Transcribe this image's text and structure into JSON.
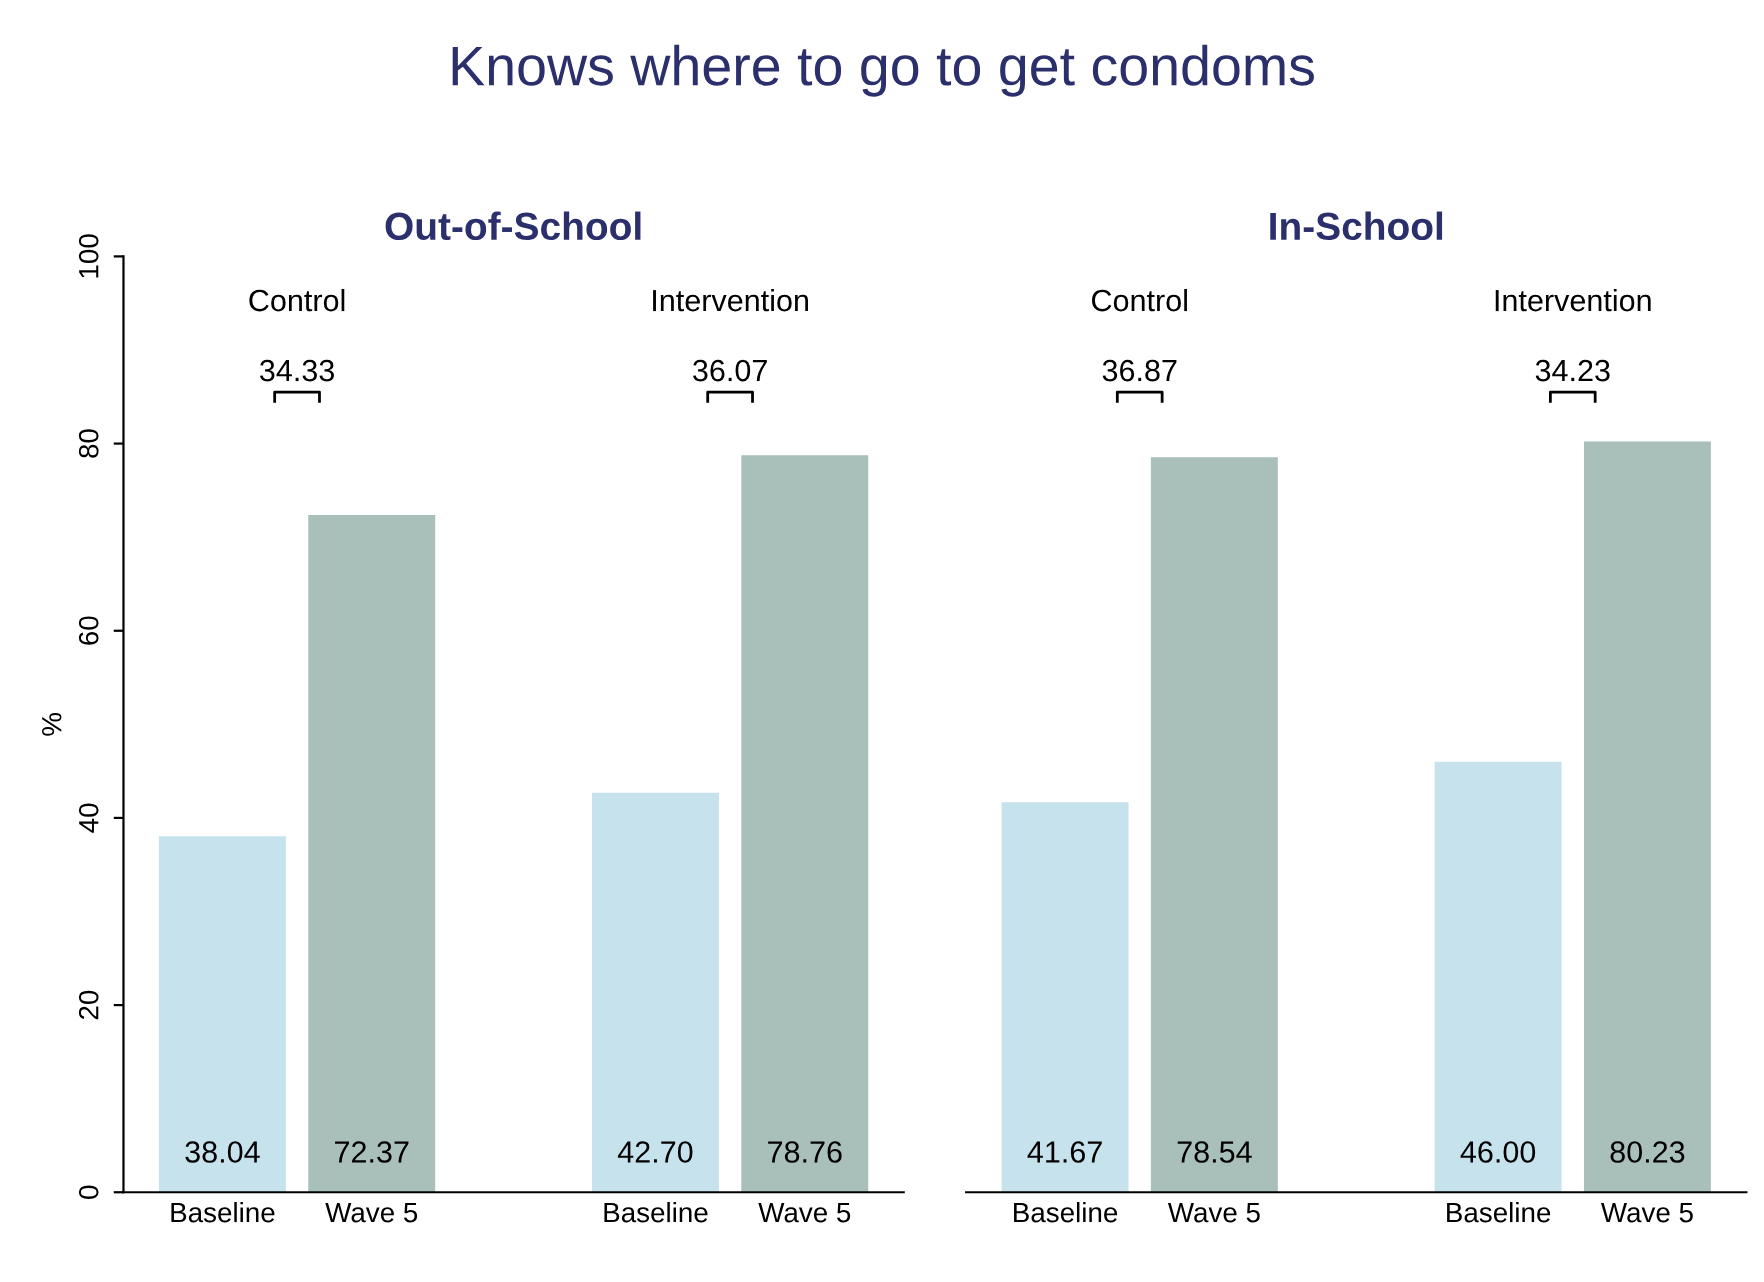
{
  "chart_data": [
    {
      "type": "bar",
      "title": "Knows where to go to get condoms",
      "subtitle": "Out-of-School",
      "ylabel": "%",
      "categories": [
        "Baseline",
        "Wave 5",
        "Baseline",
        "Wave 5"
      ],
      "values": [
        38.04,
        72.37,
        42.7,
        78.76
      ],
      "value_labels": [
        "38.04",
        "72.37",
        "42.70",
        "78.76"
      ],
      "colors": [
        "#c6e2ec",
        "#a9bfba",
        "#c6e2ec",
        "#a9bfba"
      ],
      "annotations": [
        "Control",
        "Intervention",
        "34.33",
        "36.07"
      ],
      "ylim": [
        0,
        100
      ],
      "yticks": [
        0,
        20,
        40,
        60,
        80,
        100
      ],
      "grid": false
    },
    {
      "type": "bar",
      "subtitle": "In-School",
      "categories": [
        "Baseline",
        "Wave 5",
        "Baseline",
        "Wave 5"
      ],
      "values": [
        41.67,
        78.54,
        46.0,
        80.23
      ],
      "value_labels": [
        "41.67",
        "78.54",
        "46.00",
        "80.23"
      ],
      "colors": [
        "#c6e2ec",
        "#a9bfba",
        "#c6e2ec",
        "#a9bfba"
      ],
      "annotations": [
        "Control",
        "Intervention",
        "36.87",
        "34.23"
      ],
      "ylim": [
        0,
        100
      ],
      "yticks": [
        0,
        20,
        40,
        60,
        80,
        100
      ],
      "tick_labels": "x",
      "grid": false
    }
  ]
}
